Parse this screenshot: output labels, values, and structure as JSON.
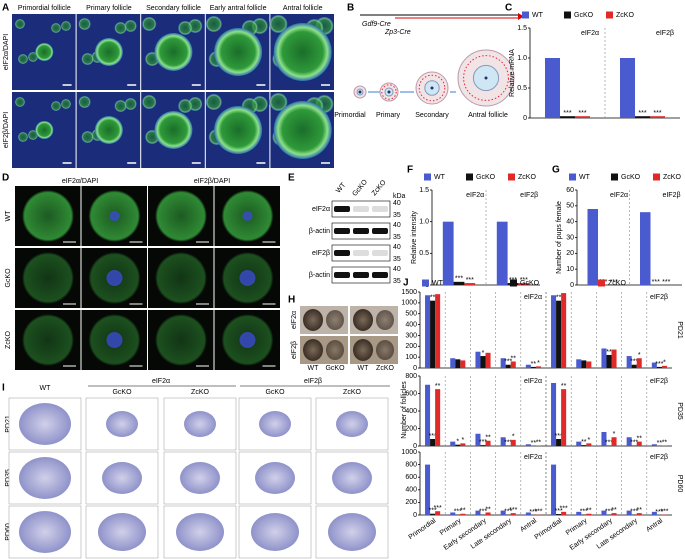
{
  "A": {
    "label": "A",
    "columns": [
      "Primordial follicle",
      "Primary follicle",
      "Secondary follicle",
      "Early antral follicle",
      "Antral follicle"
    ],
    "rows": [
      "eIF2α/DAPI",
      "eIF2β/DAPI"
    ]
  },
  "B": {
    "label": "B",
    "lines": [
      "Gdf9-Cre",
      "Zp3-Cre"
    ],
    "stages": [
      "Primordial",
      "Primary",
      "Secondary",
      "Antral follicle"
    ]
  },
  "C": {
    "label": "C",
    "type": "bar",
    "y_label": "Relative mRNA",
    "categories": [
      "eIF2α",
      "eIF2β"
    ],
    "ylim": [
      0,
      1.5
    ],
    "yticks": [
      0,
      0.5,
      {
        "value": 1,
        "label": "1.0"
      },
      1.5
    ],
    "series": [
      {
        "name": "WT",
        "color": "#4a5bd0",
        "values": [
          1.0,
          1.0
        ]
      },
      {
        "name": "GcKO",
        "color": "#111111",
        "values": [
          0.03,
          0.03
        ],
        "annotations": [
          "***",
          "***"
        ]
      },
      {
        "name": "ZcKO",
        "color": "#e02a2a",
        "values": [
          0.03,
          0.03
        ],
        "annotations": [
          "***",
          "***"
        ]
      }
    ]
  },
  "D": {
    "label": "D",
    "columns": [
      "eIF2α/DAPI",
      "eIF2β/DAPI"
    ],
    "rows": [
      "WT",
      "GcKO",
      "ZcKO"
    ]
  },
  "E": {
    "label": "E",
    "lanes": [
      "WT",
      "GcKO",
      "ZcKO"
    ],
    "bands": [
      "eIF2α",
      "β-actin",
      "eIF2β",
      "β-actin"
    ],
    "unit": "kDa",
    "markers": [
      [
        40,
        35
      ],
      [
        40,
        35
      ],
      [
        40,
        35
      ],
      [
        40,
        35
      ]
    ]
  },
  "F": {
    "label": "F",
    "type": "bar",
    "y_label": "Relative intensity",
    "categories": [
      "eIF2α",
      "eIF2β"
    ],
    "ylim": [
      0,
      1.5
    ],
    "yticks": [
      0,
      0.5,
      {
        "value": 1,
        "label": "1.0"
      },
      1.5
    ],
    "series": [
      {
        "name": "WT",
        "color": "#4a5bd0",
        "values": [
          1.0,
          1.0
        ]
      },
      {
        "name": "GcKO",
        "color": "#111111",
        "values": [
          0.05,
          0.03
        ],
        "annotations": [
          "***",
          "***"
        ]
      },
      {
        "name": "ZcKO",
        "color": "#e02a2a",
        "values": [
          0.03,
          0.03
        ],
        "annotations": [
          "***",
          "***"
        ]
      }
    ]
  },
  "G": {
    "label": "G",
    "type": "bar",
    "y_label": "Number of pups female",
    "categories": [
      "eIF2α",
      "eIF2β"
    ],
    "ylim": [
      0,
      60
    ],
    "yticks": [
      0,
      10,
      20,
      30,
      40,
      50,
      60
    ],
    "series": [
      {
        "name": "WT",
        "color": "#4a5bd0",
        "values": [
          48,
          46
        ]
      },
      {
        "name": "GcKO",
        "color": "#111111",
        "values": [
          0,
          0
        ],
        "annotations": [
          "***",
          "***"
        ]
      },
      {
        "name": "ZcKO",
        "color": "#e02a2a",
        "values": [
          0,
          0
        ],
        "annotations": [
          "***",
          "***"
        ]
      }
    ]
  },
  "H": {
    "label": "H",
    "rows": [
      "eIF2α",
      "eIF2β"
    ],
    "lanes": [
      [
        "WT",
        "GcKO"
      ],
      [
        "WT",
        "ZcKO"
      ]
    ]
  },
  "I": {
    "label": "I",
    "header": [
      "WT",
      "eIF2α",
      "eIF2β"
    ],
    "sub": [
      "GcKO",
      "ZcKO",
      "GcKO",
      "ZcKO"
    ],
    "rows": [
      "PD21",
      "PD35",
      "PD60"
    ]
  },
  "J": {
    "label": "J",
    "y_label": "Number of follicles",
    "legend": [
      {
        "name": "WT",
        "color": "#4a5bd0"
      },
      {
        "name": "GcKO",
        "color": "#111111"
      },
      {
        "name": "ZcKO",
        "color": "#e02a2a"
      }
    ],
    "categories": [
      "Primordial",
      "Primary",
      "Early secondary",
      "Late secondary",
      "Antral",
      "Primordial",
      "Primary",
      "Early secondary",
      "Late secondary",
      "Antral"
    ],
    "charts": [
      {
        "type": "bar",
        "name": "PD21",
        "groups": [
          "eIF2α",
          "eIF2β"
        ],
        "ylim": [
          0,
          1500
        ],
        "yticks": [
          0,
          100,
          200,
          300,
          400,
          500,
          1000,
          1500
        ],
        "axis_break": true,
        "series": [
          {
            "values": [
              1350,
              90,
              150,
              90,
              30,
              1350,
              80,
              180,
              110,
              50
            ]
          },
          {
            "values": [
              1100,
              80,
              110,
              30,
              10,
              1100,
              70,
              120,
              30,
              10
            ],
            "annotations": [
              "**",
              null,
              "*",
              "***",
              "**",
              "**",
              null,
              "**",
              "***",
              "***"
            ]
          },
          {
            "values": [
              1400,
              70,
              140,
              60,
              15,
              1450,
              60,
              170,
              90,
              20
            ],
            "annotations": [
              null,
              null,
              null,
              "**",
              "*",
              null,
              null,
              null,
              "*",
              "*"
            ]
          }
        ]
      },
      {
        "type": "bar",
        "name": "PD35",
        "groups": [
          "eIF2α",
          "eIF2β"
        ],
        "ylim": [
          0,
          800
        ],
        "yticks": [
          0,
          200,
          400,
          600,
          800
        ],
        "series": [
          {
            "values": [
              700,
              50,
              140,
              100,
              20,
              720,
              50,
              160,
              100,
              20
            ]
          },
          {
            "values": [
              80,
              15,
              10,
              5,
              0,
              80,
              10,
              5,
              5,
              0
            ],
            "annotations": [
              "***",
              "*",
              "***",
              "***",
              "**",
              "***",
              "**",
              "***",
              "***",
              "**"
            ]
          },
          {
            "values": [
              650,
              30,
              60,
              70,
              5,
              650,
              30,
              100,
              50,
              5
            ],
            "annotations": [
              "**",
              "*",
              "**",
              "*",
              "**",
              "**",
              "*",
              "*",
              "**",
              "**"
            ]
          }
        ]
      },
      {
        "type": "bar",
        "name": "PD60",
        "groups": [
          "eIF2α",
          "eIF2β"
        ],
        "ylim": [
          0,
          1000
        ],
        "yticks": [
          0,
          200,
          400,
          600,
          800,
          1000
        ],
        "series": [
          {
            "values": [
              800,
              40,
              70,
              70,
              40,
              800,
              50,
              70,
              70,
              50
            ]
          },
          {
            "values": [
              20,
              5,
              5,
              5,
              0,
              15,
              5,
              5,
              5,
              0
            ],
            "annotations": [
              "***",
              "***",
              "***",
              "***",
              "***",
              "***",
              "***",
              "***",
              "***",
              "***"
            ]
          },
          {
            "values": [
              60,
              20,
              40,
              30,
              5,
              50,
              20,
              30,
              30,
              5
            ],
            "annotations": [
              "***",
              "**",
              "**",
              "***",
              "***",
              "***",
              "**",
              "**",
              "**",
              "***"
            ]
          }
        ]
      }
    ]
  }
}
